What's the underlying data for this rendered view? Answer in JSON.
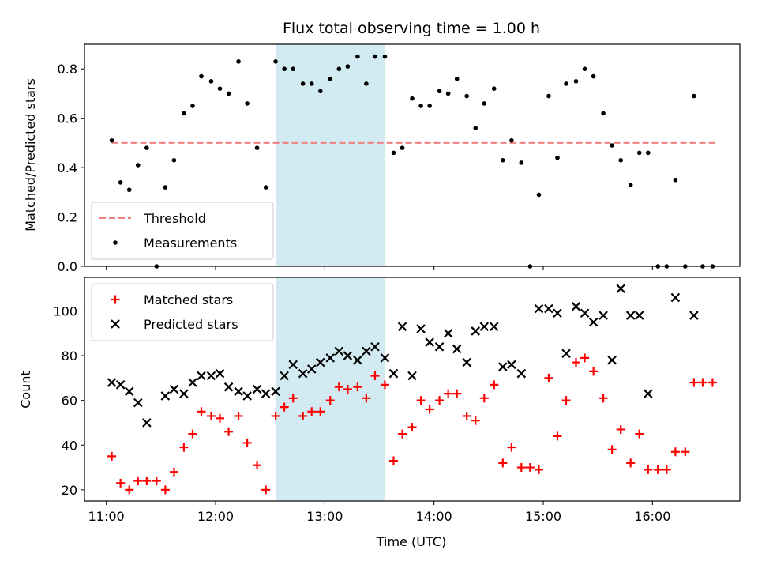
{
  "chart_data": {
    "type": "scatter",
    "title": "Flux total observing time = 1.00 h",
    "xlabel": "Time (UTC)",
    "x_unit": "hours UTC",
    "xlim": [
      10.8,
      16.8
    ],
    "x_ticks": [
      {
        "value": 11,
        "label": "11:00"
      },
      {
        "value": 12,
        "label": "12:00"
      },
      {
        "value": 13,
        "label": "13:00"
      },
      {
        "value": 14,
        "label": "14:00"
      },
      {
        "value": 15,
        "label": "15:00"
      },
      {
        "value": 16,
        "label": "16:00"
      }
    ],
    "highlight_span": {
      "x_start": 12.55,
      "x_end": 13.55,
      "color": "#add8e6"
    },
    "panels": [
      {
        "ylabel": "Matched/Predicted stars",
        "ylim": [
          0,
          0.9
        ],
        "y_ticks": [
          {
            "value": 0.0,
            "label": "0.0"
          },
          {
            "value": 0.2,
            "label": "0.2"
          },
          {
            "value": 0.4,
            "label": "0.4"
          },
          {
            "value": 0.6,
            "label": "0.6"
          },
          {
            "value": 0.8,
            "label": "0.8"
          }
        ],
        "legend_position": "lower-left",
        "lines": [
          {
            "name": "Threshold",
            "color": "#f08080",
            "style": "dashed",
            "x": [
              11.05,
              16.57
            ],
            "y": [
              0.5,
              0.5
            ]
          }
        ],
        "series": [
          {
            "name": "Measurements",
            "marker": "dot",
            "color": "#000000",
            "x": [
              11.05,
              11.13,
              11.21,
              11.29,
              11.37,
              11.46,
              11.54,
              11.62,
              11.71,
              11.79,
              11.87,
              11.96,
              12.04,
              12.12,
              12.21,
              12.29,
              12.38,
              12.46,
              12.55,
              12.63,
              12.71,
              12.8,
              12.88,
              12.96,
              13.05,
              13.13,
              13.21,
              13.3,
              13.38,
              13.46,
              13.55,
              13.63,
              13.71,
              13.8,
              13.88,
              13.96,
              14.05,
              14.13,
              14.21,
              14.3,
              14.38,
              14.46,
              14.55,
              14.63,
              14.71,
              14.8,
              14.88,
              14.96,
              15.05,
              15.13,
              15.21,
              15.3,
              15.38,
              15.46,
              15.55,
              15.63,
              15.71,
              15.8,
              15.88,
              15.96,
              16.05,
              16.13,
              16.21,
              16.3,
              16.38,
              16.46,
              16.55
            ],
            "y": [
              0.51,
              0.34,
              0.31,
              0.41,
              0.48,
              0.0,
              0.32,
              0.43,
              0.62,
              0.65,
              0.77,
              0.75,
              0.72,
              0.7,
              0.83,
              0.66,
              0.48,
              0.32,
              0.83,
              0.8,
              0.8,
              0.74,
              0.74,
              0.71,
              0.76,
              0.8,
              0.81,
              0.85,
              0.74,
              0.85,
              0.85,
              0.46,
              0.48,
              0.68,
              0.65,
              0.65,
              0.71,
              0.7,
              0.76,
              0.69,
              0.56,
              0.66,
              0.72,
              0.43,
              0.51,
              0.42,
              0.0,
              0.29,
              0.69,
              0.44,
              0.74,
              0.75,
              0.8,
              0.77,
              0.62,
              0.49,
              0.43,
              0.33,
              0.46,
              0.46,
              0.0,
              0.0,
              0.35,
              0.0,
              0.69,
              0.0,
              0.0
            ]
          }
        ]
      },
      {
        "ylabel": "Count",
        "ylim": [
          15,
          115
        ],
        "y_ticks": [
          {
            "value": 20,
            "label": "20"
          },
          {
            "value": 40,
            "label": "40"
          },
          {
            "value": 60,
            "label": "60"
          },
          {
            "value": 80,
            "label": "80"
          },
          {
            "value": 100,
            "label": "100"
          }
        ],
        "legend_position": "upper-left",
        "series": [
          {
            "name": "Matched stars",
            "marker": "plus",
            "color": "#ff0000",
            "x": [
              11.05,
              11.13,
              11.21,
              11.29,
              11.37,
              11.46,
              11.54,
              11.62,
              11.71,
              11.79,
              11.87,
              11.96,
              12.04,
              12.12,
              12.21,
              12.29,
              12.38,
              12.46,
              12.55,
              12.63,
              12.71,
              12.8,
              12.88,
              12.96,
              13.05,
              13.13,
              13.21,
              13.3,
              13.38,
              13.46,
              13.55,
              13.63,
              13.71,
              13.8,
              13.88,
              13.96,
              14.05,
              14.13,
              14.21,
              14.3,
              14.38,
              14.46,
              14.55,
              14.63,
              14.71,
              14.8,
              14.88,
              14.96,
              15.05,
              15.13,
              15.21,
              15.3,
              15.38,
              15.46,
              15.55,
              15.63,
              15.71,
              15.8,
              15.88,
              15.96,
              16.05,
              16.13,
              16.21,
              16.3,
              16.38,
              16.46,
              16.55
            ],
            "y": [
              35,
              23,
              20,
              24,
              24,
              24,
              20,
              28,
              39,
              45,
              55,
              53,
              52,
              46,
              53,
              41,
              31,
              20,
              53,
              57,
              61,
              53,
              55,
              55,
              60,
              66,
              65,
              66,
              61,
              71,
              67,
              33,
              45,
              48,
              60,
              56,
              60,
              63,
              63,
              53,
              51,
              61,
              67,
              32,
              39,
              30,
              30,
              29,
              70,
              44,
              60,
              77,
              79,
              73,
              61,
              38,
              47,
              32,
              45,
              29,
              29,
              29,
              37,
              37,
              68,
              68,
              68
            ]
          },
          {
            "name": "Predicted stars",
            "marker": "x",
            "color": "#000000",
            "x": [
              11.05,
              11.13,
              11.21,
              11.29,
              11.37,
              11.54,
              11.62,
              11.71,
              11.79,
              11.87,
              11.96,
              12.04,
              12.12,
              12.21,
              12.29,
              12.38,
              12.46,
              12.55,
              12.63,
              12.71,
              12.8,
              12.88,
              12.96,
              13.05,
              13.13,
              13.21,
              13.3,
              13.38,
              13.46,
              13.55,
              13.63,
              13.71,
              13.8,
              13.88,
              13.96,
              14.05,
              14.13,
              14.21,
              14.3,
              14.38,
              14.46,
              14.55,
              14.63,
              14.71,
              14.8,
              14.96,
              15.05,
              15.13,
              15.21,
              15.3,
              15.38,
              15.46,
              15.55,
              15.63,
              15.71,
              15.8,
              15.88,
              15.96,
              16.21,
              16.38
            ],
            "y": [
              68,
              67,
              64,
              59,
              50,
              62,
              65,
              63,
              68,
              71,
              71,
              72,
              66,
              64,
              62,
              65,
              63,
              64,
              71,
              76,
              72,
              74,
              77,
              79,
              82,
              80,
              78,
              82,
              84,
              79,
              72,
              93,
              71,
              92,
              86,
              84,
              90,
              83,
              77,
              91,
              93,
              93,
              75,
              76,
              72,
              101,
              101,
              99,
              81,
              102,
              99,
              95,
              98,
              78,
              110,
              98,
              98,
              63,
              106,
              98
            ]
          }
        ]
      }
    ]
  }
}
